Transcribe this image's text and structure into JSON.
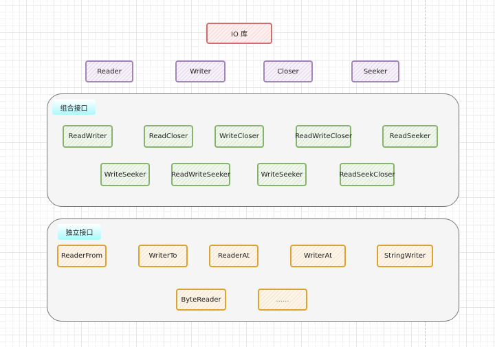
{
  "root": {
    "label": "IO 库",
    "color": "#d46a6a"
  },
  "base_interfaces": {
    "color": "#a385b8",
    "items": [
      "Reader",
      "Writer",
      "Closer",
      "Seeker"
    ]
  },
  "combined_group": {
    "title": "组合接口",
    "color": "#86b46f",
    "row1": [
      "ReadWriter",
      "ReadCloser",
      "WriteCloser",
      "ReadWriteCloser",
      "ReadSeeker"
    ],
    "row2": [
      "WriteSeeker",
      "ReadWriteSeeker",
      "WriteSeeker",
      "ReadSeekCloser"
    ]
  },
  "independent_group": {
    "title": "独立接口",
    "color": "#dca42e",
    "row1": [
      "ReaderFrom",
      "WriterTo",
      "ReaderAt",
      "WriterAt",
      "StringWriter"
    ],
    "row2": [
      "ByteReader",
      "......"
    ]
  }
}
